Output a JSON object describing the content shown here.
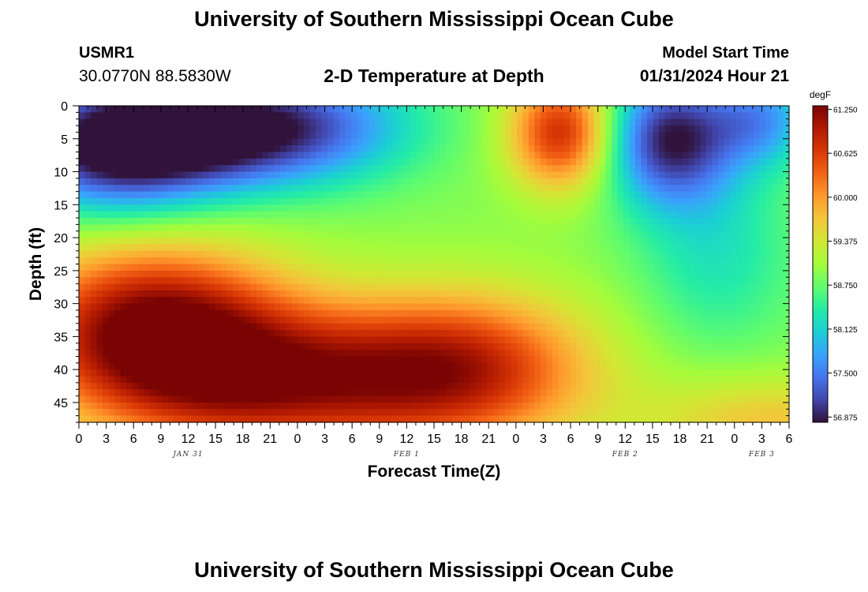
{
  "header": {
    "title": "University of Southern Mississippi Ocean Cube",
    "station_id": "USMR1",
    "coords": "30.0770N  88.5830W",
    "subtitle": "2-D Temperature at Depth",
    "start_label": "Model Start Time",
    "start_value": "01/31/2024 Hour 21"
  },
  "footer": {
    "title": "University of Southern Mississippi Ocean Cube"
  },
  "chart_data": {
    "type": "heatmap",
    "title": "2-D Temperature at Depth",
    "xlabel": "Forecast Time(Z)",
    "ylabel": "Depth (ft)",
    "unit": "degF",
    "x_ticks": [
      "0",
      "3",
      "6",
      "9",
      "12",
      "15",
      "18",
      "21",
      "0",
      "3",
      "6",
      "9",
      "12",
      "15",
      "18",
      "21",
      "0",
      "3",
      "6",
      "9",
      "12",
      "15",
      "18",
      "21",
      "0",
      "3",
      "6"
    ],
    "x_range_hours": [
      0,
      78
    ],
    "date_labels": [
      {
        "label": "JAN 31",
        "hour": 12
      },
      {
        "label": "FEB 1",
        "hour": 36
      },
      {
        "label": "FEB 2",
        "hour": 60
      },
      {
        "label": "FEB 3",
        "hour": 75
      }
    ],
    "y_ticks": [
      "0",
      "5",
      "10",
      "15",
      "20",
      "25",
      "30",
      "35",
      "40",
      "45"
    ],
    "y_range": [
      0,
      48
    ],
    "y_reversed": true,
    "colorbar": {
      "labels": [
        "61.250",
        "60.625",
        "60.000",
        "59.375",
        "58.750",
        "58.125",
        "57.500",
        "56.875"
      ],
      "values": [
        61.25,
        60.625,
        60.0,
        59.375,
        58.75,
        58.125,
        57.5,
        56.875
      ],
      "min": 56.8,
      "max": 61.3,
      "colors": [
        "#30123b",
        "#4145ab",
        "#4675ed",
        "#39a2fc",
        "#1bcfd4",
        "#24eca6",
        "#61fc6c",
        "#a4fc3b",
        "#d1e834",
        "#f3c63a",
        "#fe9b2d",
        "#f36315",
        "#d93806",
        "#b11901",
        "#7a0403"
      ]
    },
    "field_hotspots": [
      {
        "hour": 6,
        "depth": 8,
        "value": 56.9
      },
      {
        "hour": 16,
        "depth": 4,
        "value": 57.3
      },
      {
        "hour": 30,
        "depth": 2,
        "value": 58.0
      },
      {
        "hour": 53,
        "depth": 4,
        "value": 60.5
      },
      {
        "hour": 65,
        "depth": 5,
        "value": 57.0
      },
      {
        "hour": 75,
        "depth": 2,
        "value": 57.8
      },
      {
        "hour": 8,
        "depth": 32,
        "value": 61.3
      },
      {
        "hour": 17,
        "depth": 32,
        "value": 60.6
      },
      {
        "hour": 45,
        "depth": 38,
        "value": 60.6
      },
      {
        "hour": 62,
        "depth": 30,
        "value": 58.6
      },
      {
        "hour": 75,
        "depth": 46,
        "value": 59.7
      },
      {
        "hour": 38,
        "depth": 20,
        "value": 59.0
      },
      {
        "hour": 70,
        "depth": 20,
        "value": 58.1
      }
    ]
  }
}
